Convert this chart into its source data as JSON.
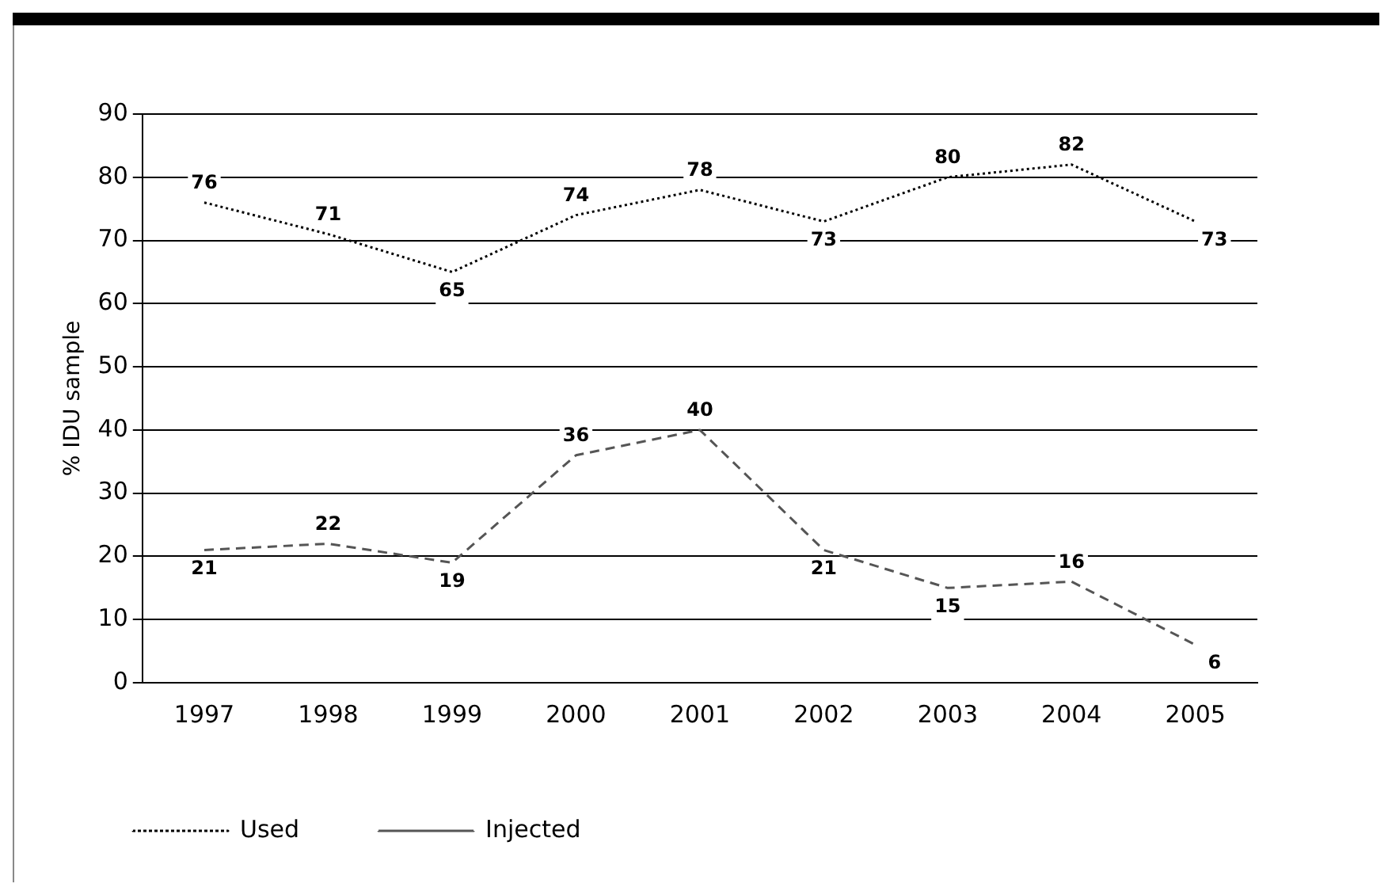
{
  "chart_data": {
    "type": "line",
    "ylabel": "% IDU sample",
    "categories": [
      "1997",
      "1998",
      "1999",
      "2000",
      "2001",
      "2002",
      "2003",
      "2004",
      "2005"
    ],
    "series": [
      {
        "name": "Used",
        "color": "#000000",
        "line_style": "dotted",
        "values": [
          76,
          71,
          65,
          74,
          78,
          73,
          80,
          82,
          73
        ]
      },
      {
        "name": "Injected",
        "color": "#555555",
        "line_style": "dashed",
        "values": [
          21,
          22,
          19,
          36,
          40,
          21,
          15,
          16,
          6
        ]
      }
    ],
    "ylim": [
      0,
      90
    ],
    "yticks": [
      0,
      10,
      20,
      30,
      40,
      50,
      60,
      70,
      80,
      90
    ],
    "grid": "y",
    "legend": "bottom left",
    "data_labels": true,
    "marker": "none"
  }
}
